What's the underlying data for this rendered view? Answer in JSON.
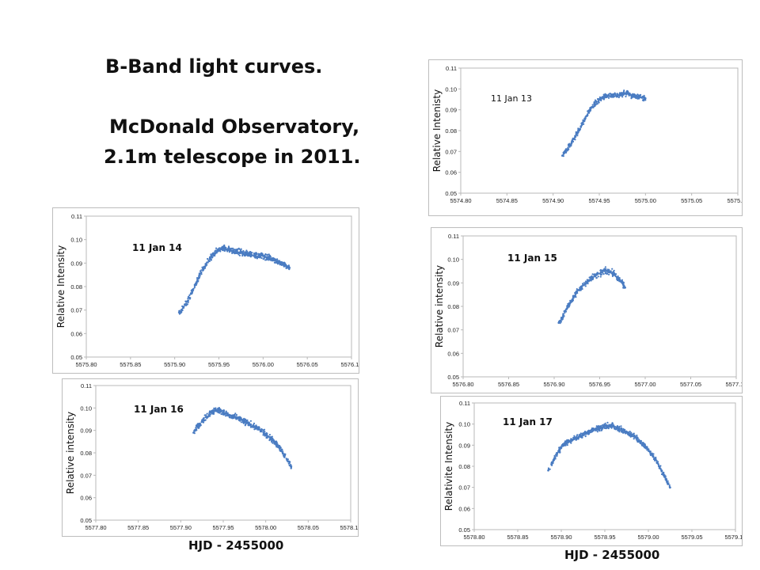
{
  "slide": {
    "title_line1": "B-Band light curves.",
    "title_line2": "McDonald Observatory,",
    "title_line3": "2.1m telescope in 2011.",
    "bottom_xlabel_left": "HJD - 2455000",
    "bottom_xlabel_right": "HJD - 2455000"
  },
  "colors": {
    "points": "#4a7cc2",
    "border": "#bdbdbd",
    "grid": "#b8b8b8",
    "text": "#111111"
  },
  "chart_data": [
    {
      "type": "scatter",
      "date_label": "11 Jan 13",
      "ylabel": "Relative Intenisty",
      "xticks": [
        "5574.80",
        "5574.85",
        "5574.90",
        "5574.95",
        "5575.00",
        "5575.05",
        "5575.10"
      ],
      "yticks": [
        "0.05",
        "0.06",
        "0.07",
        "0.08",
        "0.09",
        "0.10",
        "0.11"
      ],
      "xlim": [
        5574.8,
        5575.1
      ],
      "ylim": [
        0.05,
        0.11
      ],
      "series": [
        {
          "points": [
            [
              5574.91,
              0.068
            ],
            [
              5574.915,
              0.071
            ],
            [
              5574.92,
              0.074
            ],
            [
              5574.925,
              0.078
            ],
            [
              5574.93,
              0.082
            ],
            [
              5574.935,
              0.086
            ],
            [
              5574.94,
              0.09
            ],
            [
              5574.945,
              0.093
            ],
            [
              5574.95,
              0.095
            ],
            [
              5574.955,
              0.096
            ],
            [
              5574.96,
              0.097
            ],
            [
              5574.965,
              0.097
            ],
            [
              5574.97,
              0.097
            ],
            [
              5574.975,
              0.0975
            ],
            [
              5574.98,
              0.098
            ],
            [
              5574.985,
              0.097
            ],
            [
              5574.99,
              0.0965
            ],
            [
              5574.995,
              0.096
            ],
            [
              5575.0,
              0.0955
            ]
          ]
        }
      ]
    },
    {
      "type": "scatter",
      "date_label": "11 Jan 14",
      "ylabel": "Relative Intensity",
      "xticks": [
        "5575.80",
        "5575.85",
        "5575.90",
        "5575.95",
        "5576.00",
        "5576.05",
        "5576.10"
      ],
      "yticks": [
        "0.05",
        "0.06",
        "0.07",
        "0.08",
        "0.09",
        "0.10",
        "0.11"
      ],
      "xlim": [
        5575.8,
        5576.1
      ],
      "ylim": [
        0.05,
        0.11
      ],
      "series": [
        {
          "points": [
            [
              5575.905,
              0.069
            ],
            [
              5575.91,
              0.071
            ],
            [
              5575.915,
              0.074
            ],
            [
              5575.92,
              0.078
            ],
            [
              5575.925,
              0.082
            ],
            [
              5575.93,
              0.086
            ],
            [
              5575.935,
              0.089
            ],
            [
              5575.94,
              0.092
            ],
            [
              5575.945,
              0.094
            ],
            [
              5575.95,
              0.096
            ],
            [
              5575.955,
              0.0965
            ],
            [
              5575.96,
              0.096
            ],
            [
              5575.965,
              0.095
            ],
            [
              5575.97,
              0.095
            ],
            [
              5575.975,
              0.0945
            ],
            [
              5575.98,
              0.094
            ],
            [
              5575.985,
              0.094
            ],
            [
              5575.99,
              0.0935
            ],
            [
              5575.995,
              0.093
            ],
            [
              5576.0,
              0.093
            ],
            [
              5576.005,
              0.0925
            ],
            [
              5576.01,
              0.092
            ],
            [
              5576.015,
              0.091
            ],
            [
              5576.02,
              0.09
            ],
            [
              5576.025,
              0.089
            ],
            [
              5576.03,
              0.088
            ]
          ]
        }
      ]
    },
    {
      "type": "scatter",
      "date_label": "11 Jan 15",
      "ylabel": "Relative intensity",
      "xticks": [
        "5576.80",
        "5576.85",
        "5576.90",
        "5576.95",
        "5577.00",
        "5577.05",
        "5577.10"
      ],
      "yticks": [
        "0.05",
        "0.06",
        "0.07",
        "0.08",
        "0.09",
        "0.10",
        "0.11"
      ],
      "xlim": [
        5576.8,
        5577.1
      ],
      "ylim": [
        0.05,
        0.11
      ],
      "series": [
        {
          "points": [
            [
              5576.905,
              0.073
            ],
            [
              5576.91,
              0.076
            ],
            [
              5576.915,
              0.08
            ],
            [
              5576.92,
              0.083
            ],
            [
              5576.925,
              0.086
            ],
            [
              5576.93,
              0.088
            ],
            [
              5576.935,
              0.09
            ],
            [
              5576.94,
              0.092
            ],
            [
              5576.945,
              0.093
            ],
            [
              5576.95,
              0.094
            ],
            [
              5576.955,
              0.095
            ],
            [
              5576.96,
              0.095
            ],
            [
              5576.965,
              0.094
            ],
            [
              5576.97,
              0.092
            ],
            [
              5576.975,
              0.09
            ],
            [
              5576.978,
              0.088
            ]
          ]
        }
      ]
    },
    {
      "type": "scatter",
      "date_label": "11 Jan 16",
      "ylabel": "Relative intensity",
      "xticks": [
        "5577.80",
        "5577.85",
        "5577.90",
        "5577.95",
        "5578.00",
        "5578.05",
        "5578.10"
      ],
      "yticks": [
        "0.05",
        "0.06",
        "0.07",
        "0.08",
        "0.09",
        "0.10",
        "0.11"
      ],
      "xlim": [
        5577.8,
        5578.1
      ],
      "ylim": [
        0.05,
        0.11
      ],
      "series": [
        {
          "points": [
            [
              5577.915,
              0.089
            ],
            [
              5577.92,
              0.092
            ],
            [
              5577.925,
              0.094
            ],
            [
              5577.93,
              0.096
            ],
            [
              5577.935,
              0.098
            ],
            [
              5577.94,
              0.099
            ],
            [
              5577.945,
              0.099
            ],
            [
              5577.95,
              0.098
            ],
            [
              5577.955,
              0.097
            ],
            [
              5577.96,
              0.096
            ],
            [
              5577.965,
              0.096
            ],
            [
              5577.97,
              0.095
            ],
            [
              5577.975,
              0.094
            ],
            [
              5577.98,
              0.093
            ],
            [
              5577.985,
              0.092
            ],
            [
              5577.99,
              0.091
            ],
            [
              5577.995,
              0.09
            ],
            [
              5578.0,
              0.088
            ],
            [
              5578.005,
              0.087
            ],
            [
              5578.01,
              0.085
            ],
            [
              5578.015,
              0.083
            ],
            [
              5578.02,
              0.08
            ],
            [
              5578.025,
              0.077
            ],
            [
              5578.03,
              0.074
            ]
          ]
        }
      ]
    },
    {
      "type": "scatter",
      "date_label": "11 Jan 17",
      "ylabel": "Relativite Intensity",
      "xticks": [
        "5578.80",
        "5578.85",
        "5578.90",
        "5578.95",
        "5579.00",
        "5579.05",
        "5579.10"
      ],
      "yticks": [
        "0.05",
        "0.06",
        "0.07",
        "0.08",
        "0.09",
        "0.10",
        "0.11"
      ],
      "xlim": [
        5578.8,
        5579.1
      ],
      "ylim": [
        0.05,
        0.11
      ],
      "series": [
        {
          "points": [
            [
              5578.885,
              0.078
            ],
            [
              5578.89,
              0.082
            ],
            [
              5578.895,
              0.086
            ],
            [
              5578.9,
              0.089
            ],
            [
              5578.905,
              0.091
            ],
            [
              5578.91,
              0.092
            ],
            [
              5578.915,
              0.093
            ],
            [
              5578.92,
              0.094
            ],
            [
              5578.925,
              0.095
            ],
            [
              5578.93,
              0.096
            ],
            [
              5578.935,
              0.097
            ],
            [
              5578.94,
              0.098
            ],
            [
              5578.945,
              0.098
            ],
            [
              5578.95,
              0.099
            ],
            [
              5578.955,
              0.099
            ],
            [
              5578.96,
              0.099
            ],
            [
              5578.965,
              0.098
            ],
            [
              5578.97,
              0.097
            ],
            [
              5578.975,
              0.096
            ],
            [
              5578.98,
              0.095
            ],
            [
              5578.985,
              0.094
            ],
            [
              5578.99,
              0.092
            ],
            [
              5578.995,
              0.09
            ],
            [
              5579.0,
              0.088
            ],
            [
              5579.005,
              0.085
            ],
            [
              5579.01,
              0.082
            ],
            [
              5579.015,
              0.078
            ],
            [
              5579.02,
              0.074
            ],
            [
              5579.025,
              0.07
            ]
          ]
        }
      ]
    }
  ]
}
